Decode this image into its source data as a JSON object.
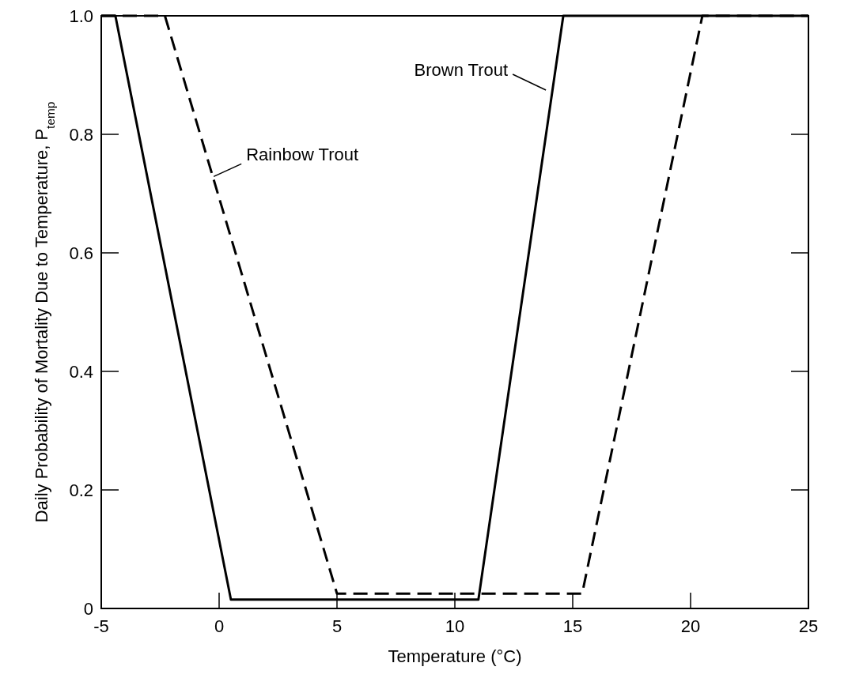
{
  "chart_data": {
    "type": "line",
    "xlabel": "Temperature (°C)",
    "ylabel": "Daily Probability of Mortality Due to Temperature, P$_{temp}$",
    "xlim": [
      -5,
      25
    ],
    "xticks": [
      -5,
      0,
      5,
      10,
      15,
      20,
      25
    ],
    "ylim": [
      0,
      1
    ],
    "yticks": [
      0,
      0.2,
      0.4,
      0.6,
      0.8,
      {
        "value": 1,
        "label": "1.0"
      }
    ],
    "grid": false,
    "legend": false,
    "marker": "none",
    "series": [
      {
        "name": "Brown Trout",
        "color": "#000000",
        "line_style": "solid",
        "x": [
          -5,
          -4.4,
          0.5,
          11.0,
          14.6,
          25
        ],
        "values": [
          1,
          1,
          0.015,
          0.015,
          1,
          1
        ]
      },
      {
        "name": "Rainbow Trout",
        "color": "#000000",
        "line_style": "dashed",
        "x": [
          -5,
          -2.3,
          5.0,
          15.4,
          20.5,
          25
        ],
        "values": [
          1,
          1,
          0.025,
          0.025,
          1,
          1
        ]
      }
    ]
  }
}
